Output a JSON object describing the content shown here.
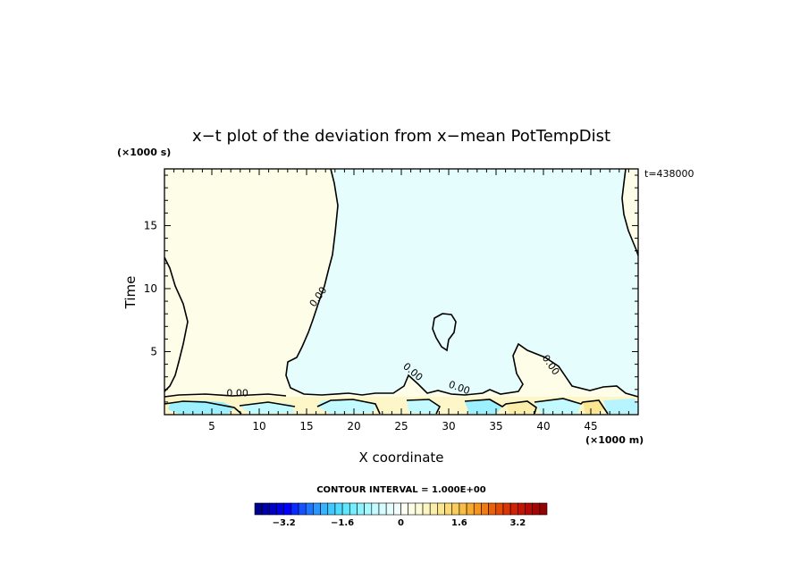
{
  "chart_data": {
    "type": "heatmap",
    "title": "x−t plot of the deviation from x−mean PotTempDist",
    "xlabel": "X coordinate",
    "ylabel": "Time",
    "x_unit": "(×1000 m)",
    "y_unit": "(×1000 s)",
    "time_stamp": "t=438000",
    "xlim": [
      0,
      50
    ],
    "ylim": [
      0,
      19.5
    ],
    "xticks": [
      5,
      10,
      15,
      20,
      25,
      30,
      35,
      40,
      45
    ],
    "yticks": [
      5,
      10,
      15
    ],
    "xtick_labels": [
      "5",
      "10",
      "15",
      "20",
      "25",
      "30",
      "35",
      "40",
      "45"
    ],
    "ytick_labels": [
      "5",
      "10",
      "15"
    ],
    "contour_labels": [
      {
        "text": "0.00",
        "x": 16.5,
        "y": 9.2,
        "rotate": -55
      },
      {
        "text": "0.00",
        "x": 7.7,
        "y": 1.45,
        "rotate": 0
      },
      {
        "text": "0.00",
        "x": 26.0,
        "y": 3.2,
        "rotate": 40
      },
      {
        "text": "0.00",
        "x": 40.5,
        "y": 3.8,
        "rotate": 55
      },
      {
        "text": "0.00",
        "x": 31.0,
        "y": 1.9,
        "rotate": 20
      }
    ],
    "regions": [
      {
        "sign": "positive",
        "description": "warm anomaly, x 0–17, t 1.5–19.5",
        "color": "#fdfde8"
      },
      {
        "sign": "negative",
        "description": "cool anomaly, x 17–50, t 1.5–19.5",
        "color": "#e6fdfd"
      },
      {
        "sign": "positive",
        "description": "warm anomaly right edge, x 48–50, t 2–19.5",
        "color": "#fdfde8"
      },
      {
        "sign": "negative",
        "description": "closed cool blob near x 29, t 5–8",
        "color": "#e6fdfd"
      },
      {
        "sign": "mixed",
        "description": "noisy band x 0–50, t 0–1.5",
        "color": "#fdf6c8"
      }
    ],
    "grid": false,
    "contour_interval_label": "CONTOUR INTERVAL = 1.000E+00",
    "colorbar": {
      "min": -4.0,
      "max": 4.0,
      "step": 0.2,
      "tick_values": [
        -3.2,
        -1.6,
        0,
        1.6,
        3.2
      ],
      "tick_labels": [
        "−3.2",
        "−1.6",
        "0",
        "1.6",
        "3.2"
      ],
      "colors": [
        "#00008b",
        "#0000a8",
        "#0000c4",
        "#0000e0",
        "#0000ff",
        "#0a2bff",
        "#1452ff",
        "#1e75ff",
        "#2b96ff",
        "#36b3ff",
        "#3fc9ff",
        "#4ddcff",
        "#5fe7ff",
        "#75eeff",
        "#8ff3ff",
        "#a9f7ff",
        "#c2faff",
        "#d6fcff",
        "#e6fdfd",
        "#f2fefe",
        "#fefef2",
        "#fdfde6",
        "#fdfad6",
        "#fcf5c2",
        "#fbeeaa",
        "#fae590",
        "#f9da75",
        "#f8cd5c",
        "#f7bd44",
        "#f6aa2e",
        "#f4941d",
        "#f07b12",
        "#ea610b",
        "#e34a08",
        "#da3407",
        "#cf2206",
        "#c31406",
        "#b50a06",
        "#a50505",
        "#930303"
      ]
    }
  }
}
